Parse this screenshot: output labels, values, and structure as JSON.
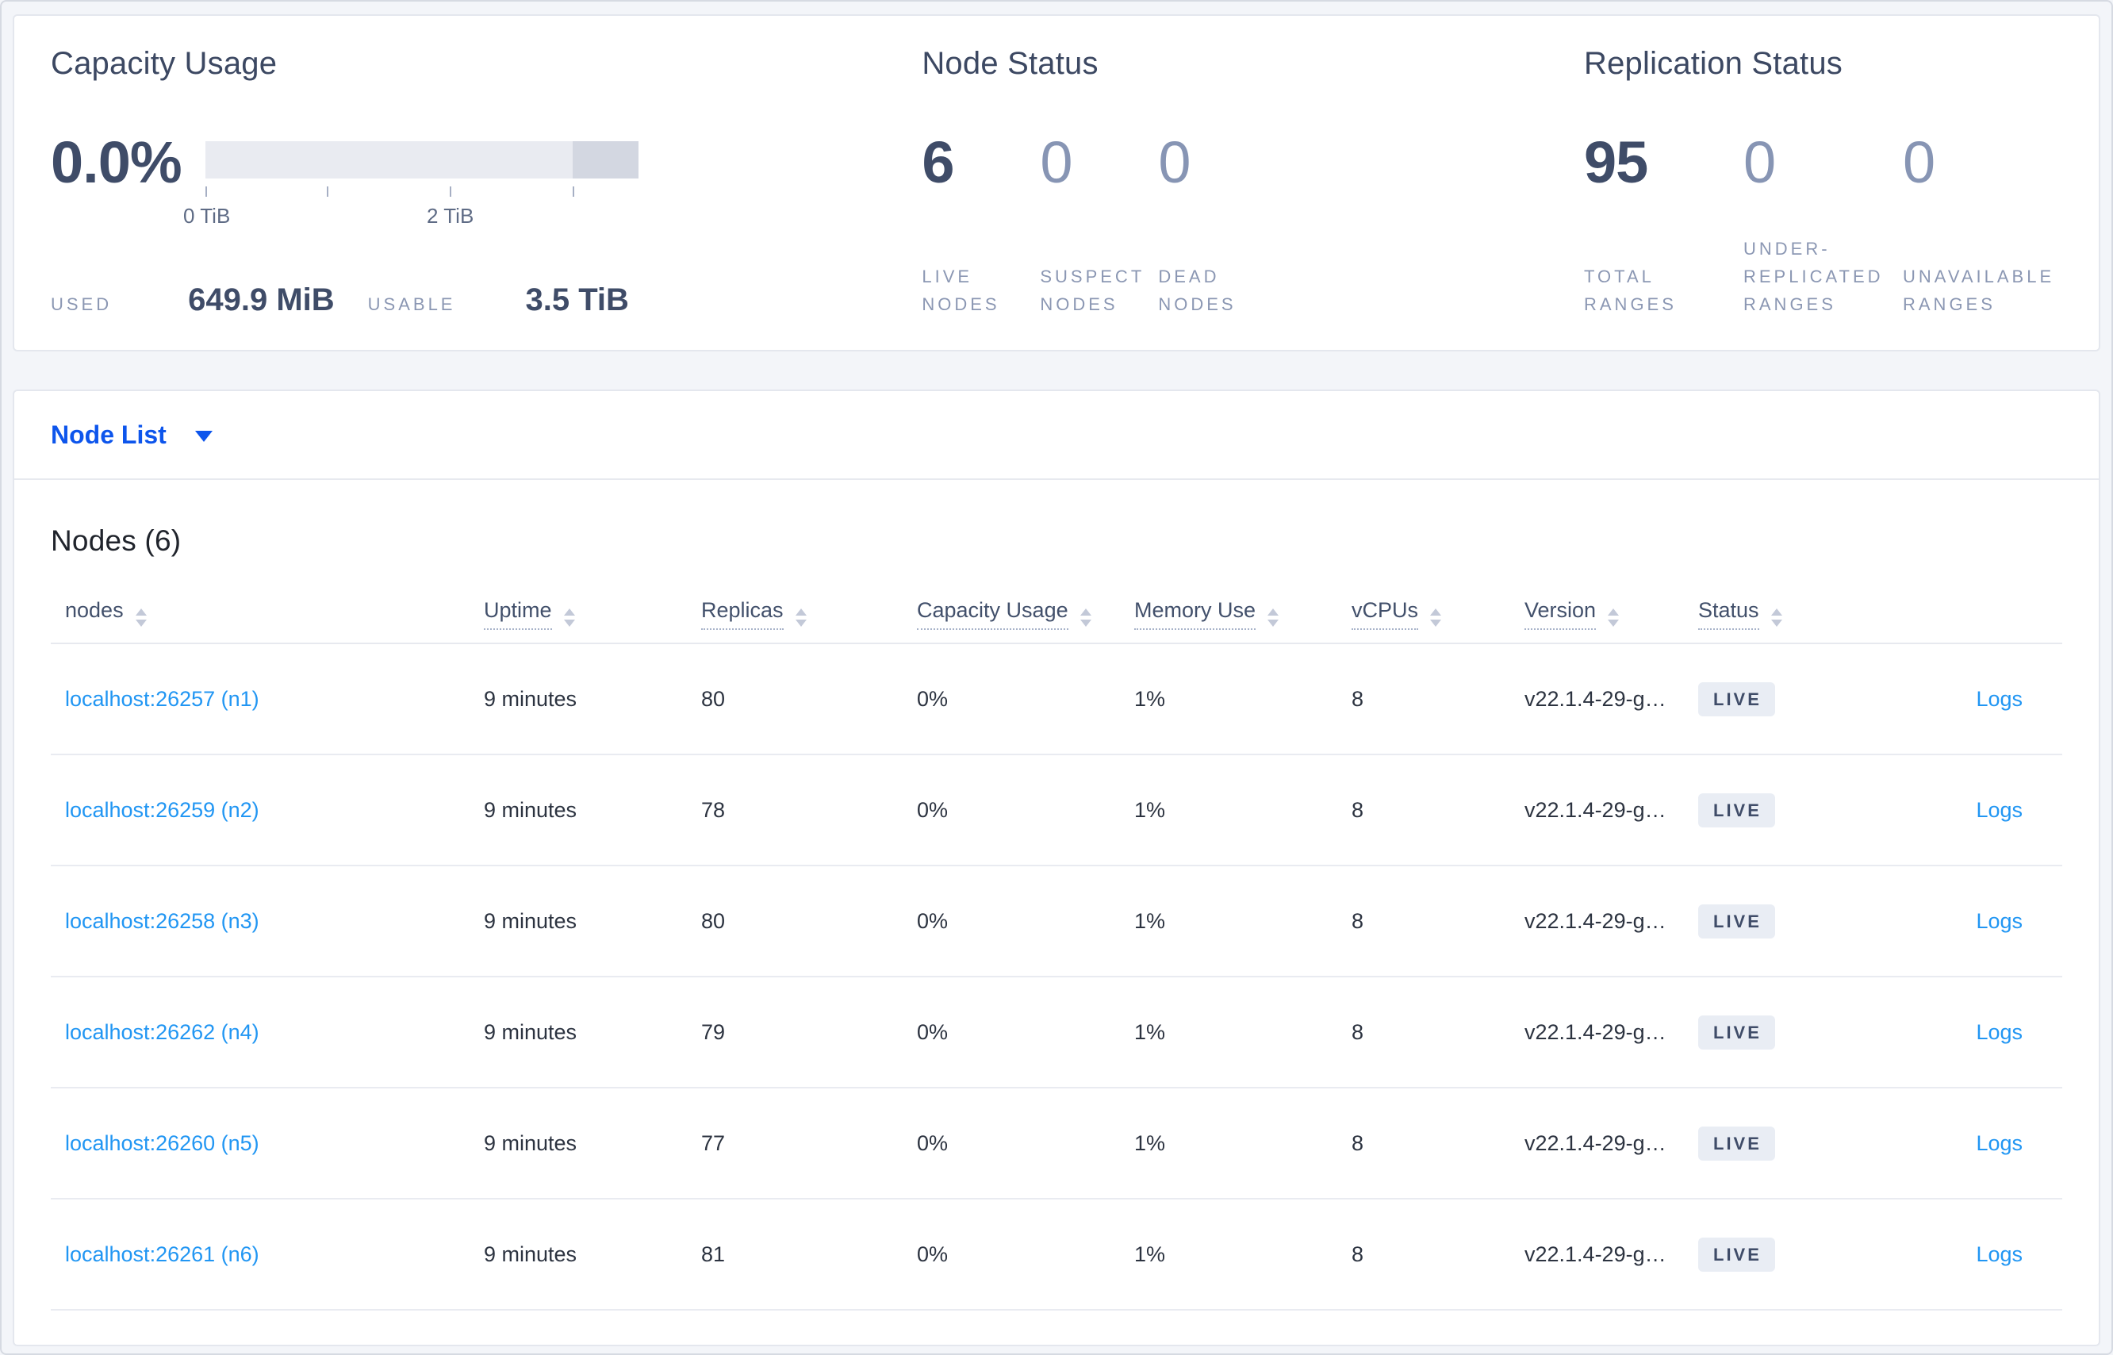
{
  "colors": {
    "page_background": "#f3f5f9",
    "selector_link_blue": "#0d55ec",
    "table_link_blue": "#2196f3",
    "stat_dark": "#3f4c68",
    "stat_muted": "#8795b4",
    "label_gray": "#8b97b3",
    "badge_background": "#e9edf4",
    "bar_light": "#e9ebf1",
    "bar_dark": "#d3d7e1"
  },
  "summary": {
    "capacity": {
      "title": "Capacity Usage",
      "percent": "0.0%",
      "axis_ticks": [
        "0 TiB",
        "2 TiB"
      ],
      "used_label": "USED",
      "used_value": "649.9 MiB",
      "usable_label": "USABLE",
      "usable_value": "3.5 TiB"
    },
    "node_status": {
      "title": "Node Status",
      "stats": [
        {
          "value": "6",
          "label": "LIVE NODES"
        },
        {
          "value": "0",
          "label": "SUSPECT NODES"
        },
        {
          "value": "0",
          "label": "DEAD NODES"
        }
      ]
    },
    "replication": {
      "title": "Replication Status",
      "stats": [
        {
          "value": "95",
          "label": "TOTAL RANGES"
        },
        {
          "value": "0",
          "label": "UNDER-REPLICATED RANGES"
        },
        {
          "value": "0",
          "label": "UNAVAILABLE RANGES"
        }
      ]
    }
  },
  "view_selector": {
    "label": "Node List"
  },
  "table": {
    "title": "Nodes (6)",
    "columns": [
      {
        "label": "nodes",
        "sortable": true,
        "underline": false
      },
      {
        "label": "Uptime",
        "sortable": true,
        "underline": true
      },
      {
        "label": "Replicas",
        "sortable": true,
        "underline": true
      },
      {
        "label": "Capacity Usage",
        "sortable": true,
        "underline": true
      },
      {
        "label": "Memory Use",
        "sortable": true,
        "underline": true
      },
      {
        "label": "vCPUs",
        "sortable": true,
        "underline": true
      },
      {
        "label": "Version",
        "sortable": true,
        "underline": true
      },
      {
        "label": "Status",
        "sortable": true,
        "underline": true
      },
      {
        "label": "",
        "sortable": false,
        "underline": false
      }
    ],
    "rows": [
      {
        "node": "localhost:26257 (n1)",
        "uptime": "9 minutes",
        "replicas": "80",
        "capacity": "0%",
        "memory": "1%",
        "vcpus": "8",
        "version": "v22.1.4-29-g…",
        "status": "LIVE",
        "logs": "Logs"
      },
      {
        "node": "localhost:26259 (n2)",
        "uptime": "9 minutes",
        "replicas": "78",
        "capacity": "0%",
        "memory": "1%",
        "vcpus": "8",
        "version": "v22.1.4-29-g…",
        "status": "LIVE",
        "logs": "Logs"
      },
      {
        "node": "localhost:26258 (n3)",
        "uptime": "9 minutes",
        "replicas": "80",
        "capacity": "0%",
        "memory": "1%",
        "vcpus": "8",
        "version": "v22.1.4-29-g…",
        "status": "LIVE",
        "logs": "Logs"
      },
      {
        "node": "localhost:26262 (n4)",
        "uptime": "9 minutes",
        "replicas": "79",
        "capacity": "0%",
        "memory": "1%",
        "vcpus": "8",
        "version": "v22.1.4-29-g…",
        "status": "LIVE",
        "logs": "Logs"
      },
      {
        "node": "localhost:26260 (n5)",
        "uptime": "9 minutes",
        "replicas": "77",
        "capacity": "0%",
        "memory": "1%",
        "vcpus": "8",
        "version": "v22.1.4-29-g…",
        "status": "LIVE",
        "logs": "Logs"
      },
      {
        "node": "localhost:26261 (n6)",
        "uptime": "9 minutes",
        "replicas": "81",
        "capacity": "0%",
        "memory": "1%",
        "vcpus": "8",
        "version": "v22.1.4-29-g…",
        "status": "LIVE",
        "logs": "Logs"
      }
    ]
  }
}
